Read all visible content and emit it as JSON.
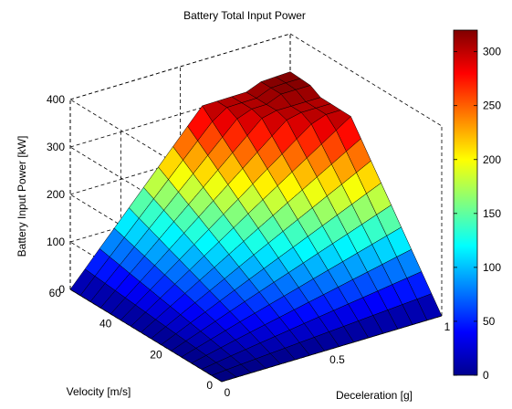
{
  "chart_data": {
    "type": "surface3d",
    "title": "Battery Total Input Power",
    "xlabel": "Deceleration [g]",
    "ylabel": "Velocity [m/s]",
    "zlabel": "Battery Input Power [kW]",
    "xlim": [
      0,
      1
    ],
    "ylim": [
      0,
      60
    ],
    "zlim": [
      0,
      400
    ],
    "x_ticks": [
      "0",
      "0.5",
      "1"
    ],
    "y_ticks": [
      "0",
      "20",
      "40",
      "60"
    ],
    "z_ticks": [
      "0",
      "100",
      "200",
      "300",
      "400"
    ],
    "grid": true,
    "colormap": "jet",
    "colorbar": {
      "placement": "right",
      "range": [
        0,
        320
      ],
      "ticks": [
        "0",
        "50",
        "100",
        "150",
        "200",
        "250",
        "300"
      ]
    },
    "grid_size": [
      15,
      15
    ],
    "peak_kW": 320,
    "plateau_kW": 300
  }
}
